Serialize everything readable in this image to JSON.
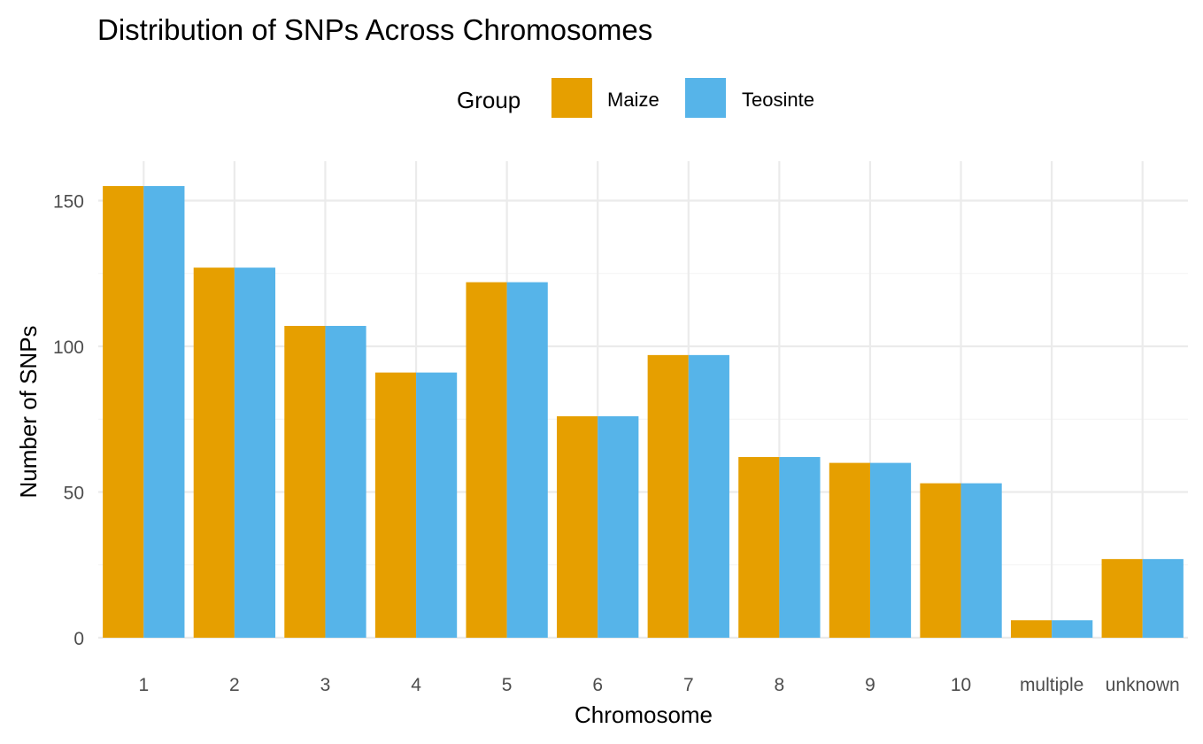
{
  "chart_data": {
    "type": "bar",
    "title": "Distribution of SNPs Across Chromosomes",
    "xlabel": "Chromosome",
    "ylabel": "Number of SNPs",
    "categories": [
      "1",
      "2",
      "3",
      "4",
      "5",
      "6",
      "7",
      "8",
      "9",
      "10",
      "multiple",
      "unknown"
    ],
    "series": [
      {
        "name": "Maize",
        "color": "#E69F00",
        "values": [
          155,
          127,
          107,
          91,
          122,
          76,
          97,
          62,
          60,
          53,
          6,
          27
        ]
      },
      {
        "name": "Teosinte",
        "color": "#56B4E9",
        "values": [
          155,
          127,
          107,
          91,
          122,
          76,
          97,
          62,
          60,
          53,
          6,
          27
        ]
      }
    ],
    "ylim": [
      0,
      163
    ],
    "yticks": [
      0,
      50,
      100,
      150
    ],
    "yticks_minor": [
      25,
      75,
      125
    ],
    "legend": {
      "title": "Group",
      "position": "top"
    },
    "grid": true
  }
}
